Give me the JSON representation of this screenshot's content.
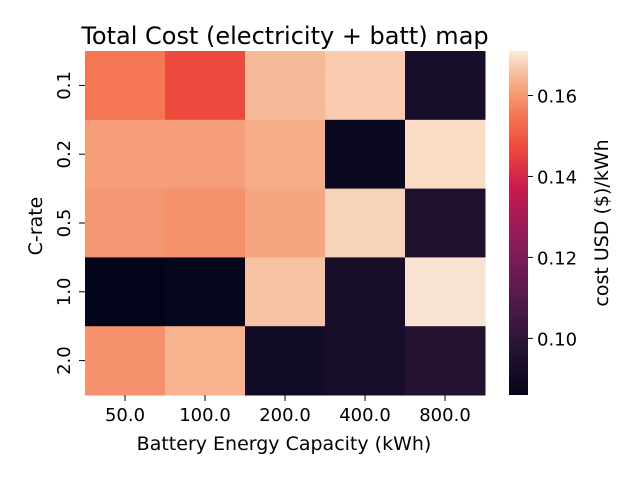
{
  "chart_data": {
    "type": "heatmap",
    "title": "Total Cost (electricity + batt) map",
    "xlabel": "Battery Energy Capacity (kWh)",
    "ylabel": "C-rate",
    "x_categories": [
      "50.0",
      "100.0",
      "200.0",
      "400.0",
      "800.0"
    ],
    "y_categories": [
      "0.1",
      "0.2",
      "0.5",
      "1.0",
      "2.0"
    ],
    "values": [
      [
        0.155,
        0.147,
        0.165,
        0.167,
        0.093
      ],
      [
        0.161,
        0.161,
        0.163,
        0.088,
        0.169
      ],
      [
        0.16,
        0.159,
        0.162,
        0.168,
        0.095
      ],
      [
        0.086,
        0.087,
        0.166,
        0.093,
        0.17
      ],
      [
        0.159,
        0.164,
        0.091,
        0.093,
        0.096
      ]
    ],
    "colorbar": {
      "label": "cost USD ($)/kWh",
      "range": [
        0.086,
        0.171
      ],
      "ticks": [
        "0.10",
        "0.12",
        "0.14",
        "0.16"
      ],
      "colormap": "rocket"
    }
  }
}
